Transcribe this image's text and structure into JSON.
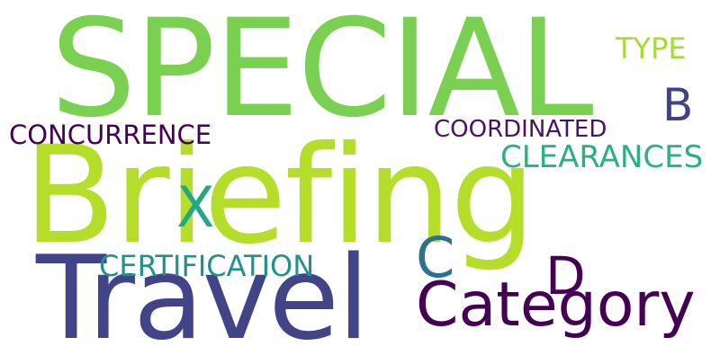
{
  "word_cloud": {
    "words": [
      {
        "id": "special",
        "text": "SPECIAL",
        "color": "#7ad151"
      },
      {
        "id": "briefing",
        "text": "Briefing",
        "color": "#b5de2b"
      },
      {
        "id": "travel",
        "text": "Travel",
        "color": "#414487"
      },
      {
        "id": "category",
        "text": "Category",
        "color": "#440154"
      },
      {
        "id": "type",
        "text": "TYPE",
        "color": "#a5db36"
      },
      {
        "id": "b",
        "text": "B",
        "color": "#404387"
      },
      {
        "id": "concurrence",
        "text": "CONCURRENCE",
        "color": "#440154"
      },
      {
        "id": "coordinated",
        "text": "COORDINATED",
        "color": "#471365"
      },
      {
        "id": "clearances",
        "text": "CLEARANCES",
        "color": "#2bb07f"
      },
      {
        "id": "x",
        "text": "X",
        "color": "#22a884"
      },
      {
        "id": "c",
        "text": "C",
        "color": "#2c728e"
      },
      {
        "id": "d",
        "text": "D",
        "color": "#440154"
      },
      {
        "id": "certification",
        "text": "CERTIFICATION",
        "color": "#21918c"
      }
    ]
  }
}
